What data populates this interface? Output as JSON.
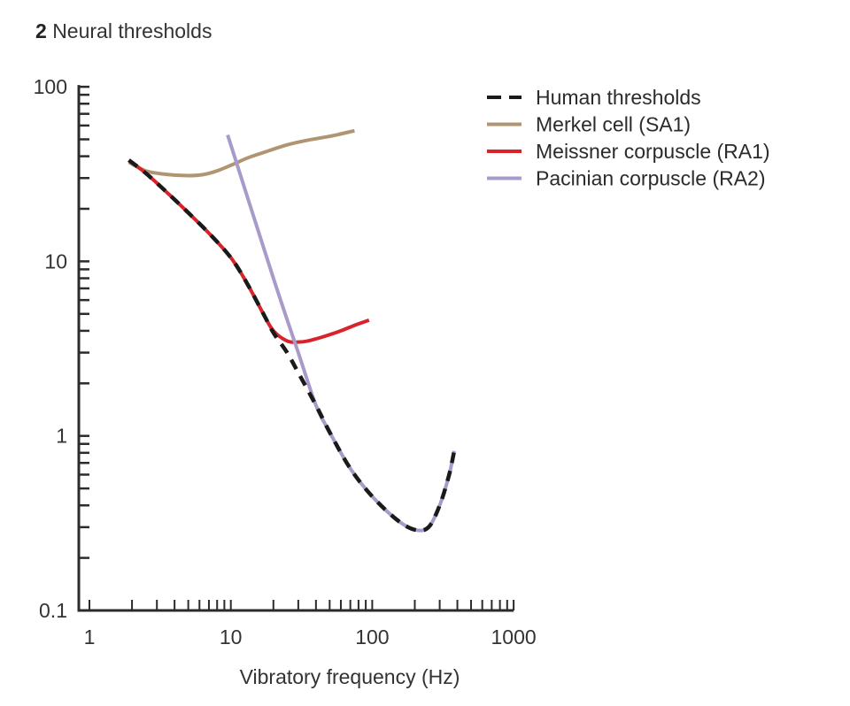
{
  "title": {
    "number": "2",
    "text": "Neural thresholds"
  },
  "chart_data": {
    "type": "line",
    "title": "Neural thresholds",
    "xlabel": "Vibratory frequency (Hz)",
    "ylabel": "",
    "xscale": "log",
    "yscale": "log",
    "xlim": [
      1,
      1000
    ],
    "ylim": [
      0.1,
      100
    ],
    "xticks": [
      "1",
      "10",
      "100",
      "1000"
    ],
    "yticks": [
      "0.1",
      "1",
      "10",
      "100"
    ],
    "grid": false,
    "legend_position": "top-right",
    "series": [
      {
        "name": "Human thresholds",
        "color": "#1a1a1a",
        "style": "dashed",
        "x": [
          1.9,
          2.5,
          3.5,
          5,
          7,
          10,
          13,
          17,
          20,
          25,
          30,
          40,
          50,
          70,
          100,
          150,
          200,
          250,
          300,
          350,
          380
        ],
        "y": [
          38,
          32,
          25,
          19,
          14.5,
          10.5,
          7.5,
          5,
          3.9,
          3.0,
          2.3,
          1.5,
          1.05,
          0.65,
          0.45,
          0.33,
          0.29,
          0.3,
          0.4,
          0.6,
          0.82
        ]
      },
      {
        "name": "Merkel cell (SA1)",
        "color": "#b09573",
        "style": "solid",
        "x": [
          1.9,
          2.5,
          3.5,
          5,
          6.5,
          8,
          10,
          13,
          17,
          25,
          35,
          50,
          75
        ],
        "y": [
          37,
          33,
          31.5,
          31,
          31.5,
          33,
          35.5,
          39,
          42,
          46.5,
          49.5,
          52,
          56
        ]
      },
      {
        "name": "Meissner corpuscle (RA1)",
        "color": "#d8232a",
        "style": "solid",
        "x": [
          1.9,
          2.5,
          3.5,
          5,
          7,
          10,
          13,
          17,
          20,
          25,
          30,
          35,
          45,
          60,
          75,
          95
        ],
        "y": [
          38,
          32,
          25,
          19,
          14.5,
          10.5,
          7.5,
          5,
          4,
          3.5,
          3.45,
          3.5,
          3.7,
          4.0,
          4.3,
          4.6
        ]
      },
      {
        "name": "Pacinian corpuscle (RA2)",
        "color": "#a99bc9",
        "style": "solid",
        "x": [
          9.5,
          20,
          30,
          40,
          50,
          70,
          100,
          150,
          200,
          250,
          300,
          350,
          380
        ],
        "y": [
          53,
          8,
          3.0,
          1.5,
          1.05,
          0.65,
          0.45,
          0.33,
          0.29,
          0.3,
          0.4,
          0.6,
          0.82
        ]
      }
    ]
  }
}
